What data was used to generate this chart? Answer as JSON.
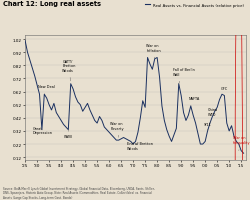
{
  "title": "Chart 12: Long real assets",
  "legend_label": "Real Assets vs. Financial Assets (relative price)",
  "line_color": "#1a3060",
  "background_color": "#e8e0d0",
  "ylim": [
    0.1,
    1.05
  ],
  "xlim": [
    1925,
    2017
  ],
  "xtick_positions": [
    1925,
    1930,
    1935,
    1940,
    1945,
    1950,
    1955,
    1960,
    1965,
    1970,
    1975,
    1980,
    1985,
    1990,
    1995,
    2000,
    2005,
    2010,
    2015
  ],
  "xtick_labels": [
    "'25",
    "'30",
    "'35",
    "'40",
    "'45",
    "'50",
    "'55",
    "'60",
    "'65",
    "'70",
    "'75",
    "'80",
    "'85",
    "'90",
    "'95",
    "'00",
    "'05",
    "'10",
    "'15"
  ],
  "ytick_positions": [
    0.12,
    0.22,
    0.32,
    0.42,
    0.52,
    0.62,
    0.72,
    0.82,
    0.92,
    1.02
  ],
  "ytick_labels": [
    "0.12",
    "0.22",
    "0.32",
    "0.42",
    "0.52",
    "0.62",
    "0.72",
    "0.82",
    "0.92",
    "1.02"
  ],
  "source_text": "Source: BofA Merrill Lynch Global Investment Strategy, Global Financial Data, Bloomberg, USDA, Sants, Shiller,\nDNS, Spaenjers, Historic Auto Group. Note: Real Assets (Commodities, Real Estate, Collectibles) vs. Financial\nAssets (Large Cap Stocks, Long-term Govt. Bonds)",
  "data_x": [
    1925,
    1926,
    1927,
    1928,
    1929,
    1930,
    1931,
    1932,
    1933,
    1934,
    1935,
    1936,
    1937,
    1938,
    1939,
    1940,
    1941,
    1942,
    1943,
    1944,
    1945,
    1946,
    1947,
    1948,
    1949,
    1950,
    1951,
    1952,
    1953,
    1954,
    1955,
    1956,
    1957,
    1958,
    1959,
    1960,
    1961,
    1962,
    1963,
    1964,
    1965,
    1966,
    1967,
    1968,
    1969,
    1970,
    1971,
    1972,
    1973,
    1974,
    1975,
    1976,
    1977,
    1978,
    1979,
    1980,
    1981,
    1982,
    1983,
    1984,
    1985,
    1986,
    1987,
    1988,
    1989,
    1990,
    1991,
    1992,
    1993,
    1994,
    1995,
    1996,
    1997,
    1998,
    1999,
    2000,
    2001,
    2002,
    2003,
    2004,
    2005,
    2006,
    2007,
    2008,
    2009,
    2010,
    2011,
    2012,
    2013,
    2014,
    2015,
    2016
  ],
  "data_y": [
    1.01,
    0.92,
    0.86,
    0.8,
    0.74,
    0.67,
    0.6,
    0.33,
    0.6,
    0.57,
    0.52,
    0.48,
    0.53,
    0.46,
    0.43,
    0.4,
    0.37,
    0.35,
    0.33,
    0.68,
    0.64,
    0.58,
    0.54,
    0.52,
    0.47,
    0.5,
    0.53,
    0.48,
    0.44,
    0.4,
    0.38,
    0.43,
    0.4,
    0.35,
    0.33,
    0.31,
    0.29,
    0.27,
    0.25,
    0.25,
    0.26,
    0.27,
    0.26,
    0.25,
    0.24,
    0.22,
    0.24,
    0.31,
    0.42,
    0.55,
    0.5,
    0.88,
    0.83,
    0.79,
    0.87,
    0.88,
    0.73,
    0.51,
    0.4,
    0.33,
    0.28,
    0.24,
    0.29,
    0.34,
    0.68,
    0.59,
    0.46,
    0.4,
    0.44,
    0.51,
    0.44,
    0.38,
    0.3,
    0.22,
    0.22,
    0.24,
    0.32,
    0.38,
    0.43,
    0.47,
    0.5,
    0.56,
    0.6,
    0.59,
    0.38,
    0.32,
    0.36,
    0.28,
    0.24,
    0.22,
    0.17,
    0.15
  ]
}
